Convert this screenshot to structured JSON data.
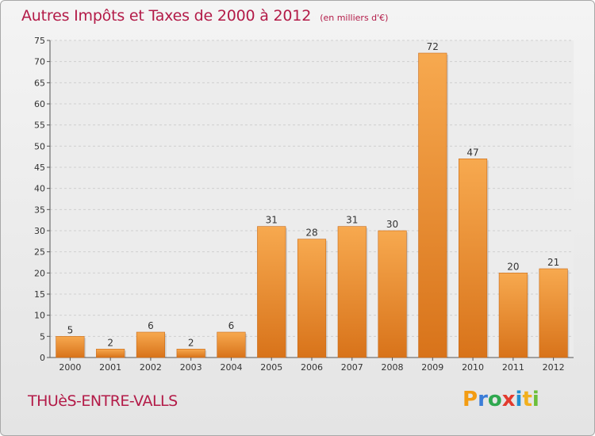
{
  "header": {
    "title": "Autres Impôts et Taxes de 2000 à 2012",
    "subtitle": "(en milliers d'€)"
  },
  "commune": "THUèS-ENTRE-VALLS",
  "logo": {
    "text": "Proxiti"
  },
  "colors": {
    "title": "#b31b48",
    "bar_top": "#f7a94f",
    "bar_bottom": "#d8731a"
  },
  "chart_data": {
    "type": "bar",
    "categories": [
      "2000",
      "2001",
      "2002",
      "2003",
      "2004",
      "2005",
      "2006",
      "2007",
      "2008",
      "2009",
      "2010",
      "2011",
      "2012"
    ],
    "values": [
      5,
      2,
      6,
      2,
      6,
      31,
      28,
      31,
      30,
      72,
      47,
      20,
      21
    ],
    "ylim": [
      0,
      75
    ],
    "yticks": [
      0,
      5,
      10,
      15,
      20,
      25,
      30,
      35,
      40,
      45,
      50,
      55,
      60,
      65,
      70,
      75
    ],
    "grid": true
  }
}
